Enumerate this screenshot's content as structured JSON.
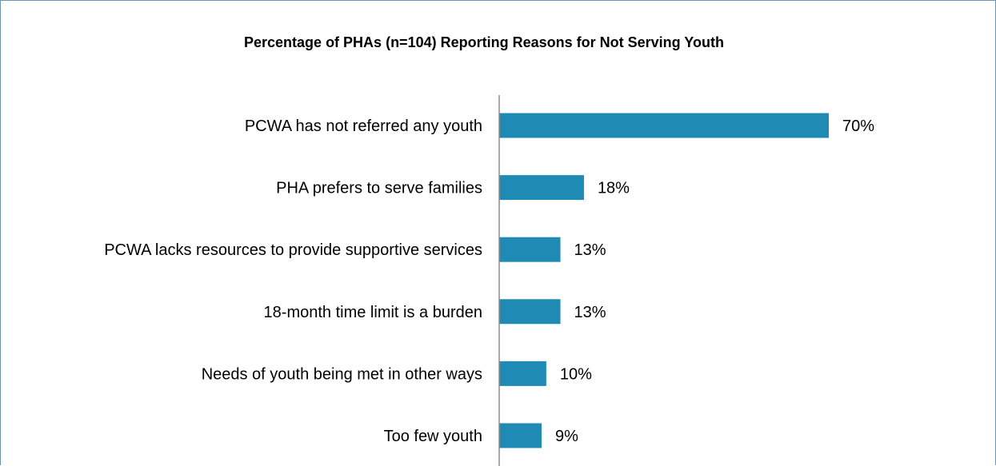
{
  "chart_data": {
    "type": "bar",
    "orientation": "horizontal",
    "title": "Percentage of PHAs (n=104) Reporting Reasons for Not Serving Youth",
    "xlabel": "",
    "ylabel": "",
    "categories": [
      "PCWA has not referred any youth",
      "PHA prefers to serve families",
      "PCWA lacks resources to provide supportive services",
      "18-month time limit is a burden",
      "Needs of youth being met in other ways",
      "Too few youth"
    ],
    "values": [
      70,
      18,
      13,
      13,
      10,
      9
    ],
    "value_labels": [
      "70%",
      "18%",
      "13%",
      "13%",
      "10%",
      "9%"
    ],
    "unit": "%",
    "xlim": [
      0,
      100
    ],
    "grid": false,
    "legend": "none",
    "bar_color": "#1f8ab4",
    "axis_color": "#8c8c8c",
    "border_color": "#6f94b3"
  }
}
